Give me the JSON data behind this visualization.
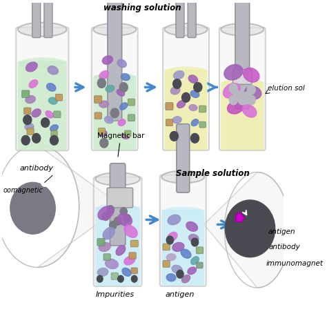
{
  "bg_color": "#ffffff",
  "labels": {
    "magnetic_bar": "Magnetic bar",
    "immunomagnetic": "immunomagnet",
    "antibody_top": "antibody",
    "antigen_top": "antigen",
    "oomagnetic": "oomagnetic",
    "antibody_left": "antibody",
    "impurities": "Impurities",
    "antigen_label": "antigen",
    "sample_solution": "Sample solution",
    "washing_solution": "washing solution",
    "elution_sol": "elution sol"
  },
  "colors": {
    "cyan_light": "#c8ecf4",
    "green_light": "#cceacc",
    "yellow_light": "#eeeeaa",
    "tube_border": "#aaaaaa",
    "bar_color": "#b8b8c0",
    "bar_edge": "#909098",
    "connector_color": "#cccccc",
    "bead_dark": "#4a4a52",
    "bead_med": "#7a7a84",
    "bead_light": "#b8b8c0",
    "p_purple": "#a060b8",
    "p_pink": "#d870d8",
    "p_blue_gray": "#8090b8",
    "p_teal": "#60a8a8",
    "p_orange": "#c89050",
    "p_green": "#70aa70",
    "p_blue": "#6080c8",
    "arrow_blue": "#4488cc",
    "cone_fill": "#f0f0f0",
    "cone_edge": "#b0b0b0"
  }
}
